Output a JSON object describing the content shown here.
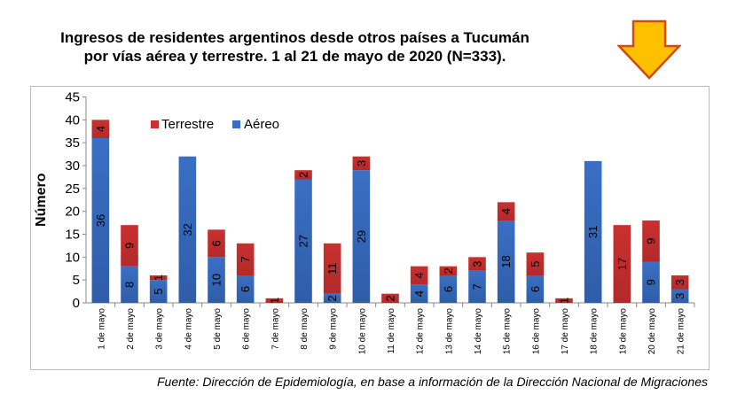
{
  "title": {
    "line1": "Ingresos de residentes argentinos desde otros países a Tucumán",
    "line2": "por vías aérea y terrestre. 1 al 21 de mayo de 2020 (N=333)."
  },
  "source": "Fuente: Dirección de Epidemiología, en base a información de la Dirección Nacional de Migraciones",
  "colors": {
    "aereo": "#3a6fc4",
    "terrestre": "#c8312f",
    "arrow_fill": "#ffc000",
    "arrow_stroke": "#d44a0a"
  },
  "chart_data": {
    "type": "bar",
    "stacked": true,
    "title": "",
    "xlabel": "",
    "ylabel": "Número",
    "ylim": [
      0,
      45
    ],
    "yticks": [
      "0",
      "5",
      "10",
      "15",
      "20",
      "25",
      "30",
      "35",
      "40",
      "45"
    ],
    "grid": false,
    "legend_position": "top-left",
    "categories": [
      "1 de mayo",
      "2 de mayo",
      "3 de mayo",
      "4 de mayo",
      "5 de mayo",
      "6 de mayo",
      "7 de mayo",
      "8 de mayo",
      "9 de mayo",
      "10 de mayo",
      "11 de mayo",
      "12 de mayo",
      "13 de mayo",
      "14 de mayo",
      "15 de mayo",
      "16 de mayo",
      "17 de mayo",
      "18 de mayo",
      "19 de mayo",
      "20 de mayo",
      "21 de mayo"
    ],
    "series": [
      {
        "name": "Aéreo",
        "values": [
          36,
          8,
          5,
          32,
          10,
          6,
          0,
          27,
          2,
          29,
          0,
          4,
          6,
          7,
          18,
          6,
          0,
          31,
          0,
          9,
          3
        ]
      },
      {
        "name": "Terrestre",
        "values": [
          4,
          9,
          1,
          0,
          6,
          7,
          1,
          2,
          11,
          3,
          2,
          4,
          2,
          3,
          4,
          5,
          1,
          0,
          17,
          9,
          3
        ]
      }
    ]
  }
}
